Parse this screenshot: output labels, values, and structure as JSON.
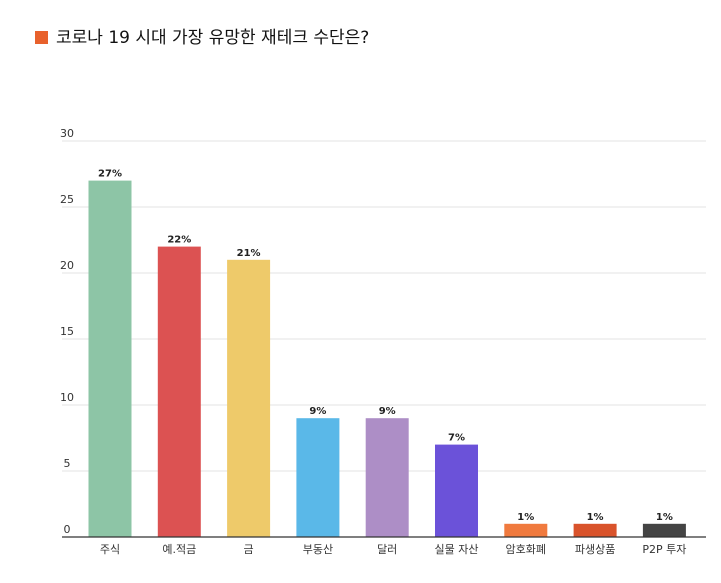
{
  "chart_data": {
    "type": "bar",
    "title": "코로나 19 시대 가장 유망한 재테크 수단은?",
    "title_marker_color": "#e8612c",
    "categories": [
      "주식",
      "예.적금",
      "금",
      "부동산",
      "달러",
      "실물 자산",
      "암호화폐",
      "파생상품",
      "P2P 투자"
    ],
    "values": [
      27,
      22,
      21,
      9,
      9,
      7,
      1,
      1,
      1
    ],
    "data_labels": [
      "27%",
      "22%",
      "21%",
      "9%",
      "9%",
      "7%",
      "1%",
      "1%",
      "1%"
    ],
    "colors": [
      "#8dc5a6",
      "#dc5252",
      "#eeca6a",
      "#5ab8e8",
      "#ad8ec6",
      "#6b52d9",
      "#f07a3e",
      "#d9532b",
      "#444444"
    ],
    "ylim": [
      0,
      30
    ],
    "yticks": [
      0,
      5,
      10,
      15,
      20,
      25,
      30
    ],
    "ytick_labels": [
      "0",
      "5",
      "10",
      "15",
      "20",
      "25",
      "30"
    ],
    "grid": true,
    "legend": "none",
    "xlabel": "",
    "ylabel": ""
  }
}
